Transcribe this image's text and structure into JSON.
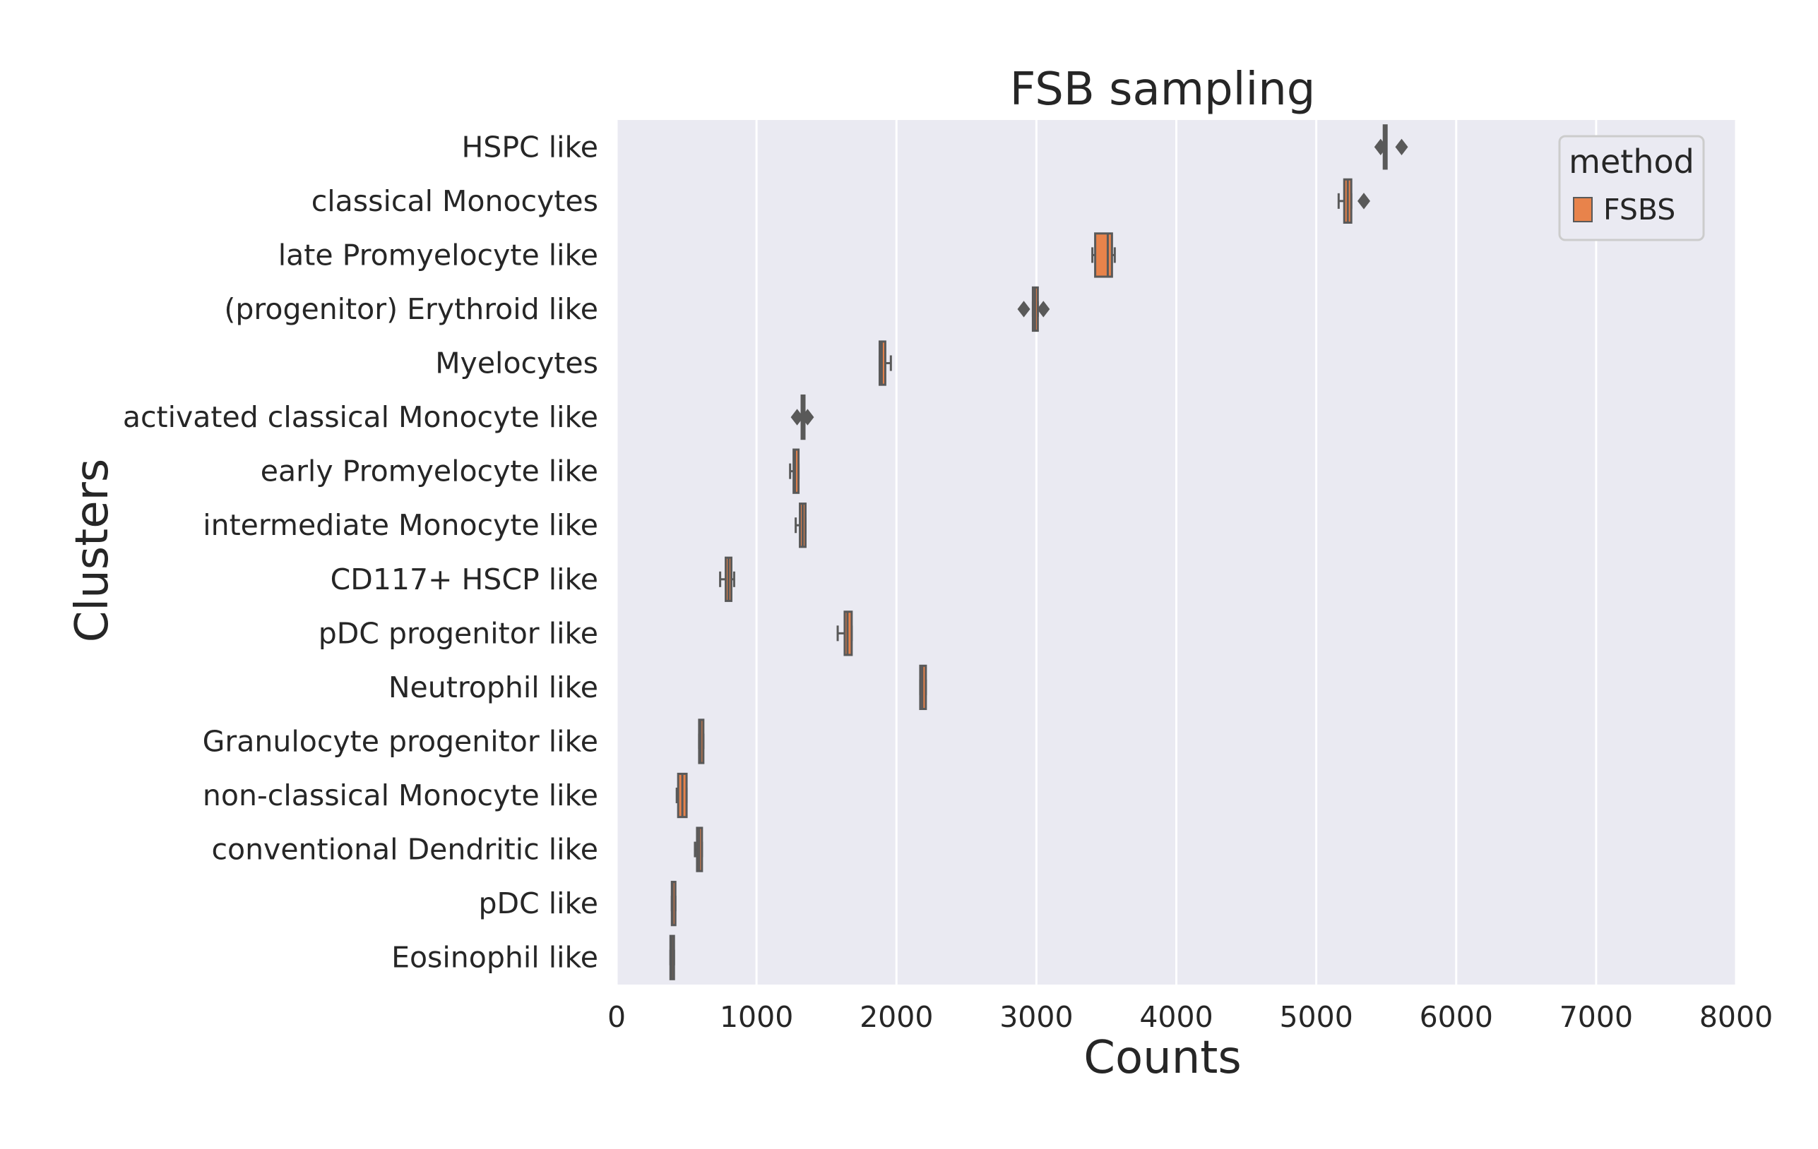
{
  "chart_data": {
    "type": "boxplot",
    "orientation": "horizontal",
    "title": "FSB sampling",
    "xlabel": "Counts",
    "ylabel": "Clusters",
    "xlim": [
      0,
      8000
    ],
    "xticks": [
      0,
      1000,
      2000,
      3000,
      4000,
      5000,
      6000,
      7000,
      8000
    ],
    "grid": true,
    "legend": {
      "title": "method",
      "placement": "top-right",
      "entries": [
        {
          "label": "FSBS",
          "color": "#e8834b"
        }
      ]
    },
    "colors": {
      "plot_bg": "#eaeaf2",
      "grid": "#ffffff",
      "box_fill": "#e8834b",
      "box_line": "#595959"
    },
    "categories": [
      "HSPC like",
      "classical Monocytes",
      "late Promyelocyte like",
      "(progenitor) Erythroid like",
      "Myelocytes",
      "activated classical Monocyte like",
      "early Promyelocyte like",
      "intermediate Monocyte like",
      "CD117+ HSCP like",
      "pDC progenitor like",
      "Neutrophil like",
      "Granulocyte progenitor like",
      "non-classical Monocyte like",
      "conventional Dendritic like",
      "pDC like",
      "Eosinophil like"
    ],
    "series": [
      {
        "name": "FSBS",
        "boxes": [
          {
            "cluster": "HSPC like",
            "whislo": 5490,
            "q1": 5490,
            "med": 5490,
            "q3": 5495,
            "whishi": 5495,
            "fliers": [
              5460,
              5610
            ]
          },
          {
            "cluster": "classical Monocytes",
            "whislo": 5160,
            "q1": 5200,
            "med": 5225,
            "q3": 5250,
            "whishi": 5250,
            "fliers": [
              5340
            ]
          },
          {
            "cluster": "late Promyelocyte like",
            "whislo": 3400,
            "q1": 3420,
            "med": 3510,
            "q3": 3540,
            "whishi": 3560,
            "fliers": []
          },
          {
            "cluster": "(progenitor) Erythroid like",
            "whislo": 2975,
            "q1": 2975,
            "med": 2990,
            "q3": 3010,
            "whishi": 3010,
            "fliers": [
              2910,
              3050
            ]
          },
          {
            "cluster": "Myelocytes",
            "whislo": 1880,
            "q1": 1880,
            "med": 1895,
            "q3": 1920,
            "whishi": 1960,
            "fliers": []
          },
          {
            "cluster": "activated classical Monocyte like",
            "whislo": 1325,
            "q1": 1325,
            "med": 1330,
            "q3": 1340,
            "whishi": 1340,
            "fliers": [
              1290,
              1365
            ]
          },
          {
            "cluster": "early Promyelocyte like",
            "whislo": 1240,
            "q1": 1265,
            "med": 1275,
            "q3": 1300,
            "whishi": 1300,
            "fliers": []
          },
          {
            "cluster": "intermediate Monocyte like",
            "whislo": 1280,
            "q1": 1310,
            "med": 1330,
            "q3": 1350,
            "whishi": 1350,
            "fliers": []
          },
          {
            "cluster": "CD117+ HSCP like",
            "whislo": 740,
            "q1": 780,
            "med": 800,
            "q3": 820,
            "whishi": 840,
            "fliers": []
          },
          {
            "cluster": "pDC progenitor like",
            "whislo": 1580,
            "q1": 1630,
            "med": 1650,
            "q3": 1680,
            "whishi": 1680,
            "fliers": []
          },
          {
            "cluster": "Neutrophil like",
            "whislo": 2170,
            "q1": 2170,
            "med": 2185,
            "q3": 2210,
            "whishi": 2210,
            "fliers": []
          },
          {
            "cluster": "Granulocyte progenitor like",
            "whislo": 590,
            "q1": 590,
            "med": 600,
            "q3": 620,
            "whishi": 620,
            "fliers": []
          },
          {
            "cluster": "non-classical Monocyte like",
            "whislo": 430,
            "q1": 440,
            "med": 470,
            "q3": 500,
            "whishi": 500,
            "fliers": []
          },
          {
            "cluster": "conventional Dendritic like",
            "whislo": 560,
            "q1": 575,
            "med": 590,
            "q3": 610,
            "whishi": 610,
            "fliers": []
          },
          {
            "cluster": "pDC like",
            "whislo": 395,
            "q1": 395,
            "med": 400,
            "q3": 420,
            "whishi": 420,
            "fliers": []
          },
          {
            "cluster": "Eosinophil like",
            "whislo": 385,
            "q1": 385,
            "med": 395,
            "q3": 410,
            "whishi": 410,
            "fliers": []
          }
        ]
      }
    ]
  }
}
